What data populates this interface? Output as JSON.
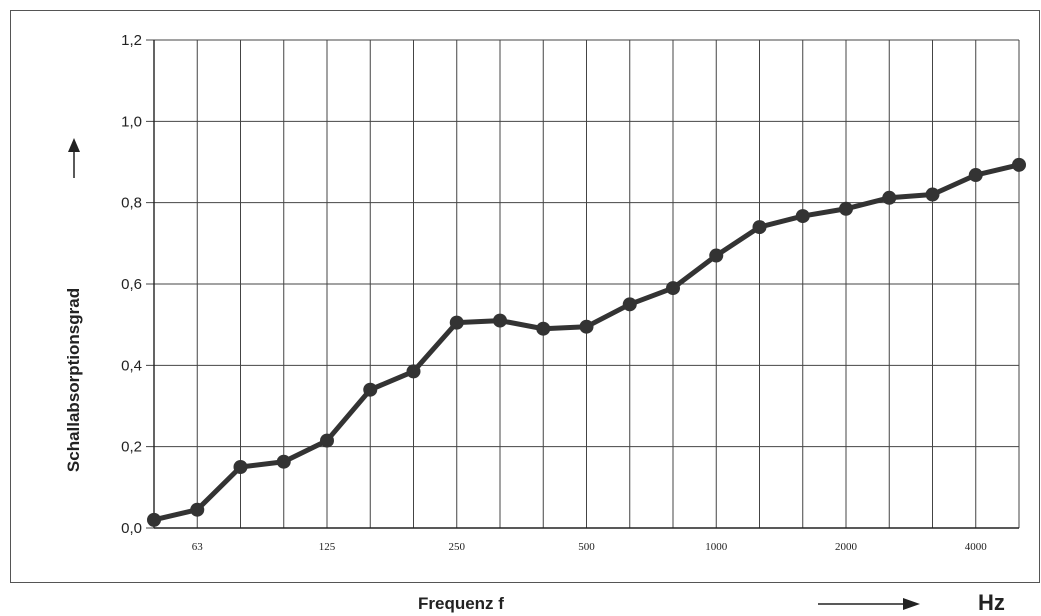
{
  "chart_data": {
    "type": "line",
    "xlabel": "Frequenz f",
    "ylabel": "Schallabsorptionsgrad",
    "x_unit": "Hz",
    "x_scale": "log (1/3 octave bands)",
    "x": [
      50,
      63,
      80,
      100,
      125,
      160,
      200,
      250,
      315,
      400,
      500,
      630,
      800,
      1000,
      1250,
      1600,
      2000,
      2500,
      3150,
      4000,
      5000
    ],
    "x_tick_labels": [
      "63",
      "125",
      "250",
      "500",
      "1000",
      "2000",
      "4000"
    ],
    "x_tick_values": [
      63,
      125,
      250,
      500,
      1000,
      2000,
      4000
    ],
    "y_tick_labels": [
      "0,0",
      "0,2",
      "0,4",
      "0,6",
      "0,8",
      "1,0",
      "1,2"
    ],
    "y_tick_values": [
      0.0,
      0.2,
      0.4,
      0.6,
      0.8,
      1.0,
      1.2
    ],
    "ylim": [
      0,
      1.2
    ],
    "grid": true,
    "series": [
      {
        "values": [
          0.02,
          0.045,
          0.15,
          0.163,
          0.215,
          0.34,
          0.385,
          0.505,
          0.51,
          0.49,
          0.495,
          0.55,
          0.59,
          0.67,
          0.74,
          0.767,
          0.785,
          0.812,
          0.82,
          0.868,
          0.893
        ],
        "color": "#333333"
      }
    ]
  }
}
